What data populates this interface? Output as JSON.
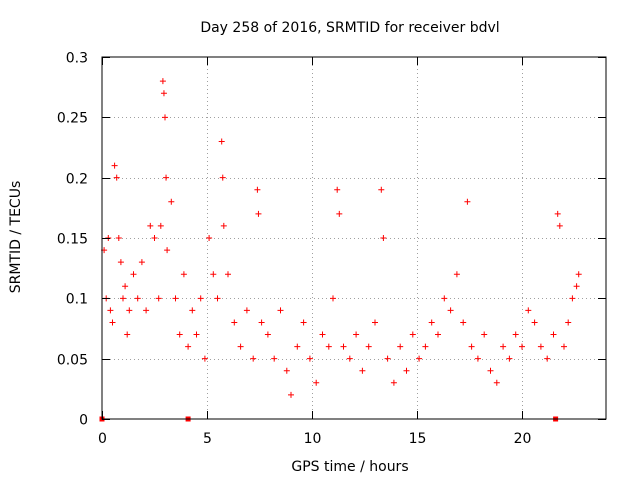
{
  "chart_data": {
    "type": "scatter",
    "title": "Day 258 of 2016, SRMTID for receiver bdvl",
    "xlabel": "GPS time / hours",
    "ylabel": "SRMTID / TECUs",
    "xlim": [
      0,
      24
    ],
    "ylim": [
      0,
      0.3
    ],
    "xticks": [
      0,
      5,
      10,
      15,
      20
    ],
    "yticks": [
      0,
      0.05,
      0.1,
      0.15,
      0.2,
      0.25,
      0.3
    ],
    "xtick_labels": [
      "0",
      "5",
      "10",
      "15",
      "20"
    ],
    "ytick_labels": [
      "0",
      "0.05",
      "0.1",
      "0.15",
      "0.2",
      "0.25",
      "0.3"
    ],
    "grid": true,
    "marker": "+",
    "series_color": "#ff0000",
    "grid_color": "#a0a0a0",
    "x_range_of_data": [
      0,
      22.7
    ],
    "series": [
      {
        "name": "SRMTID",
        "points": [
          [
            0.1,
            0.14
          ],
          [
            0.2,
            0.1
          ],
          [
            0.3,
            0.15
          ],
          [
            0.4,
            0.09
          ],
          [
            0.5,
            0.08
          ],
          [
            0.6,
            0.21
          ],
          [
            0.7,
            0.2
          ],
          [
            0.8,
            0.15
          ],
          [
            0.9,
            0.13
          ],
          [
            1.0,
            0.1
          ],
          [
            1.1,
            0.11
          ],
          [
            1.2,
            0.07
          ],
          [
            1.3,
            0.09
          ],
          [
            1.5,
            0.12
          ],
          [
            1.7,
            0.1
          ],
          [
            1.9,
            0.13
          ],
          [
            2.1,
            0.09
          ],
          [
            2.3,
            0.16
          ],
          [
            2.5,
            0.15
          ],
          [
            2.7,
            0.1
          ],
          [
            2.8,
            0.16
          ],
          [
            2.9,
            0.28
          ],
          [
            2.95,
            0.27
          ],
          [
            3.0,
            0.25
          ],
          [
            3.05,
            0.2
          ],
          [
            3.1,
            0.14
          ],
          [
            3.3,
            0.18
          ],
          [
            3.5,
            0.1
          ],
          [
            3.7,
            0.07
          ],
          [
            3.9,
            0.12
          ],
          [
            4.1,
            0.06
          ],
          [
            4.3,
            0.09
          ],
          [
            4.5,
            0.07
          ],
          [
            4.7,
            0.1
          ],
          [
            4.9,
            0.05
          ],
          [
            5.1,
            0.15
          ],
          [
            5.3,
            0.12
          ],
          [
            5.5,
            0.1
          ],
          [
            5.7,
            0.23
          ],
          [
            5.75,
            0.2
          ],
          [
            5.8,
            0.16
          ],
          [
            6.0,
            0.12
          ],
          [
            6.3,
            0.08
          ],
          [
            6.6,
            0.06
          ],
          [
            6.9,
            0.09
          ],
          [
            7.2,
            0.05
          ],
          [
            7.4,
            0.19
          ],
          [
            7.45,
            0.17
          ],
          [
            7.6,
            0.08
          ],
          [
            7.9,
            0.07
          ],
          [
            8.2,
            0.05
          ],
          [
            8.5,
            0.09
          ],
          [
            8.8,
            0.04
          ],
          [
            9.0,
            0.02
          ],
          [
            9.3,
            0.06
          ],
          [
            9.6,
            0.08
          ],
          [
            9.9,
            0.05
          ],
          [
            10.2,
            0.03
          ],
          [
            10.5,
            0.07
          ],
          [
            10.8,
            0.06
          ],
          [
            11.0,
            0.1
          ],
          [
            11.2,
            0.19
          ],
          [
            11.3,
            0.17
          ],
          [
            11.5,
            0.06
          ],
          [
            11.8,
            0.05
          ],
          [
            12.1,
            0.07
          ],
          [
            12.4,
            0.04
          ],
          [
            12.7,
            0.06
          ],
          [
            13.0,
            0.08
          ],
          [
            13.3,
            0.19
          ],
          [
            13.4,
            0.15
          ],
          [
            13.6,
            0.05
          ],
          [
            13.9,
            0.03
          ],
          [
            14.2,
            0.06
          ],
          [
            14.5,
            0.04
          ],
          [
            14.8,
            0.07
          ],
          [
            15.1,
            0.05
          ],
          [
            15.4,
            0.06
          ],
          [
            15.7,
            0.08
          ],
          [
            16.0,
            0.07
          ],
          [
            16.3,
            0.1
          ],
          [
            16.6,
            0.09
          ],
          [
            16.9,
            0.12
          ],
          [
            17.2,
            0.08
          ],
          [
            17.4,
            0.18
          ],
          [
            17.6,
            0.06
          ],
          [
            17.9,
            0.05
          ],
          [
            18.2,
            0.07
          ],
          [
            18.5,
            0.04
          ],
          [
            18.8,
            0.03
          ],
          [
            19.1,
            0.06
          ],
          [
            19.4,
            0.05
          ],
          [
            19.7,
            0.07
          ],
          [
            20.0,
            0.06
          ],
          [
            20.3,
            0.09
          ],
          [
            20.6,
            0.08
          ],
          [
            20.9,
            0.06
          ],
          [
            21.2,
            0.05
          ],
          [
            21.5,
            0.07
          ],
          [
            21.7,
            0.17
          ],
          [
            21.8,
            0.16
          ],
          [
            22.0,
            0.06
          ],
          [
            22.2,
            0.08
          ],
          [
            22.4,
            0.1
          ],
          [
            22.6,
            0.11
          ],
          [
            22.7,
            0.12
          ],
          [
            0.0,
            0.0
          ],
          [
            4.1,
            0.0
          ],
          [
            21.6,
            0.0
          ]
        ]
      }
    ]
  }
}
